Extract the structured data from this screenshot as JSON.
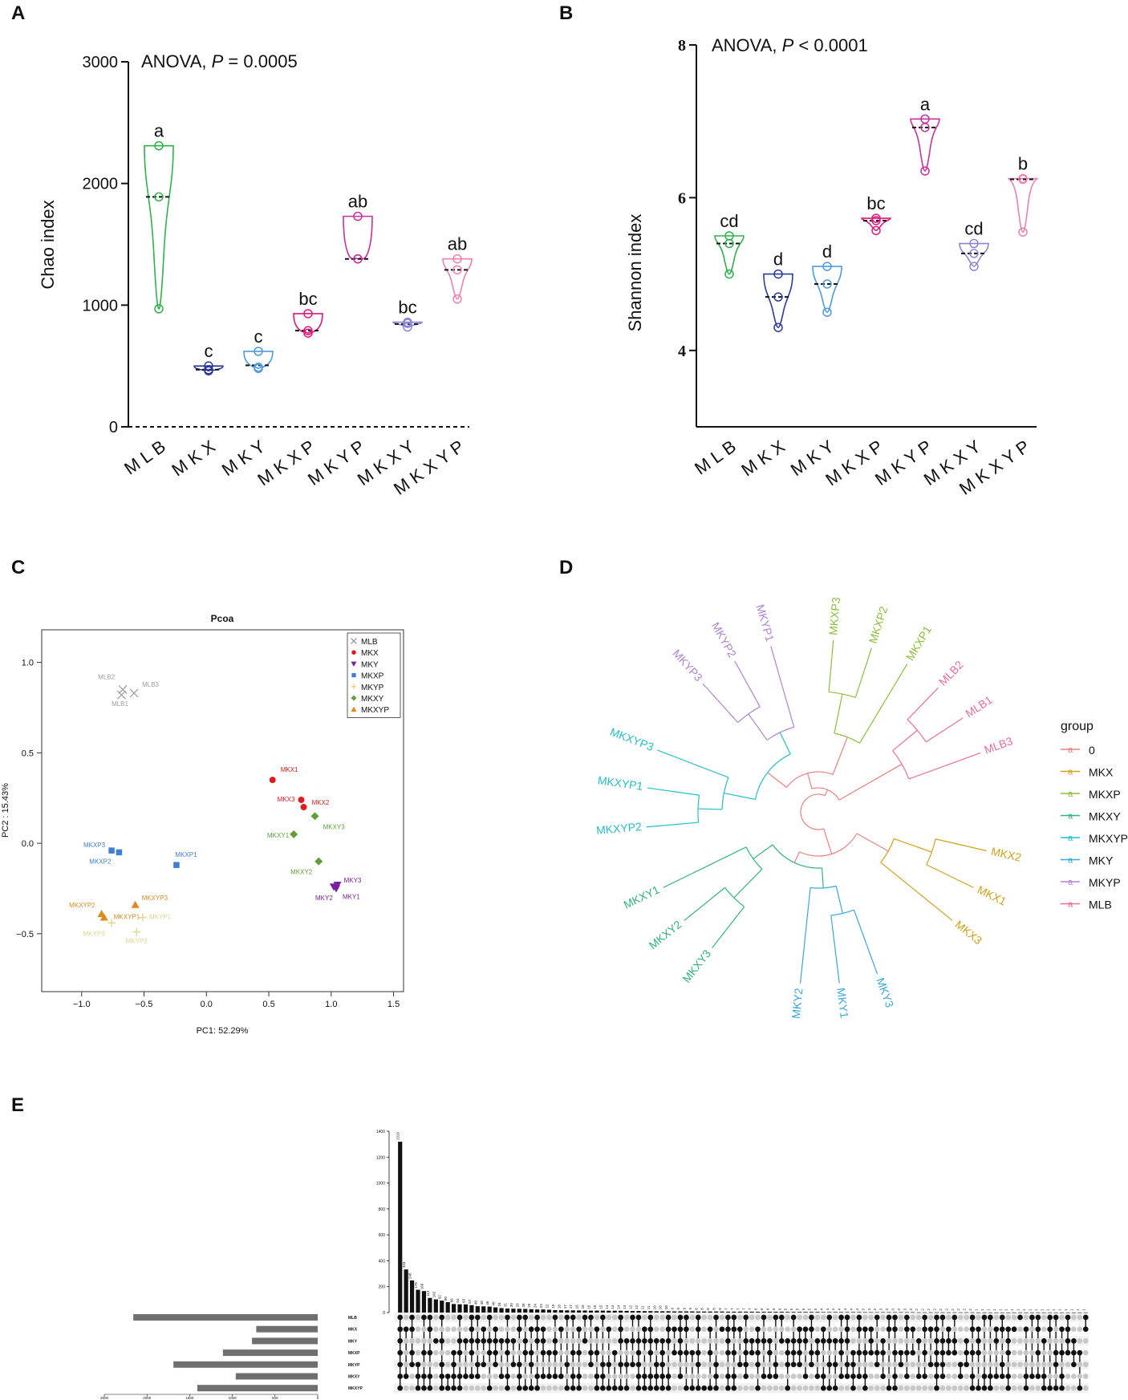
{
  "panel_labels": [
    "A",
    "B",
    "C",
    "D",
    "E"
  ],
  "chart_data": [
    {
      "id": "A",
      "type": "violin",
      "title": "ANOVA, P = 0.0005",
      "title_prefix": "ANOVA, ",
      "title_stat": "P",
      "title_suffix": " = 0.0005",
      "ylabel": "Chao index",
      "ylim": [
        0,
        3000
      ],
      "yticks": [
        0,
        1000,
        2000,
        3000
      ],
      "categories": [
        "MLB",
        "MKX",
        "MKY",
        "MKXP",
        "MKYP",
        "MKXY",
        "MKXYP"
      ],
      "colors": [
        "#2db34a",
        "#2b3a9b",
        "#4a9be0",
        "#e0197d",
        "#cc2f9b",
        "#8b85d6",
        "#f07fb0"
      ],
      "groups": [
        {
          "points": [
            2310,
            1890,
            970
          ],
          "median": 1890,
          "letter": "a"
        },
        {
          "points": [
            500,
            470,
            460
          ],
          "median": 470,
          "letter": "c"
        },
        {
          "points": [
            620,
            490,
            480
          ],
          "median": 505,
          "letter": "c"
        },
        {
          "points": [
            930,
            790,
            770
          ],
          "median": 790,
          "letter": "bc"
        },
        {
          "points": [
            1730,
            1380,
            1380
          ],
          "median": 1380,
          "letter": "ab"
        },
        {
          "points": [
            860,
            850,
            820
          ],
          "median": 845,
          "letter": "bc"
        },
        {
          "points": [
            1380,
            1290,
            1050
          ],
          "median": 1290,
          "letter": "ab"
        }
      ]
    },
    {
      "id": "B",
      "type": "violin",
      "title": "ANOVA, P < 0.0001",
      "title_prefix": "ANOVA, ",
      "title_stat": "P",
      "title_suffix": " < 0.0001",
      "ylabel": "Shannon index",
      "ylim": [
        3,
        8
      ],
      "yticks": [
        4,
        6,
        8
      ],
      "categories": [
        "MLB",
        "MKX",
        "MKY",
        "MKXP",
        "MKYP",
        "MKXY",
        "MKXYP"
      ],
      "colors": [
        "#2db34a",
        "#2b3a9b",
        "#4a9be0",
        "#e0197d",
        "#cc2f9b",
        "#8b85d6",
        "#f07fb0"
      ],
      "groups": [
        {
          "points": [
            5.5,
            5.4,
            5.0
          ],
          "median": 5.4,
          "letter": "cd"
        },
        {
          "points": [
            5.0,
            4.7,
            4.3
          ],
          "median": 4.7,
          "letter": "d"
        },
        {
          "points": [
            5.1,
            4.87,
            4.5
          ],
          "median": 4.87,
          "letter": "d"
        },
        {
          "points": [
            5.73,
            5.7,
            5.57
          ],
          "median": 5.7,
          "letter": "bc"
        },
        {
          "points": [
            7.03,
            6.92,
            6.35
          ],
          "median": 6.92,
          "letter": "a"
        },
        {
          "points": [
            5.4,
            5.27,
            5.1
          ],
          "median": 5.27,
          "letter": "cd"
        },
        {
          "points": [
            6.25,
            6.24,
            5.55
          ],
          "median": 6.24,
          "letter": "b"
        }
      ]
    },
    {
      "id": "C",
      "type": "scatter",
      "title": "Pcoa",
      "xlabel": "PC1: 52.29%",
      "ylabel": "PC2 : 15.43%",
      "xlim": [
        -1.32,
        1.58
      ],
      "ylim": [
        -0.82,
        1.18
      ],
      "xticks": [
        -1.0,
        -0.5,
        0.0,
        0.5,
        1.0,
        1.5
      ],
      "xtick_labels": [
        "−1.0",
        "−0.5",
        "0.0",
        "0.5",
        "1.0",
        "1.5"
      ],
      "yticks": [
        -0.5,
        0.0,
        0.5,
        1.0
      ],
      "ytick_labels": [
        "−0.5",
        "0.0",
        "0.5",
        "1.0"
      ],
      "legend_position": "top-right",
      "series": [
        {
          "name": "MLB",
          "color": "#9e9e9e",
          "marker": "x",
          "points": [
            {
              "label": "MLB2",
              "x": -0.67,
              "y": 0.85
            },
            {
              "label": "MLB3",
              "x": -0.58,
              "y": 0.83
            },
            {
              "label": "MLB1",
              "x": -0.68,
              "y": 0.82
            }
          ]
        },
        {
          "name": "MKX",
          "color": "#e41a1c",
          "marker": "circle",
          "points": [
            {
              "label": "MKX1",
              "x": 0.53,
              "y": 0.35
            },
            {
              "label": "MKX3",
              "x": 0.76,
              "y": 0.24
            },
            {
              "label": "MKX2",
              "x": 0.78,
              "y": 0.2
            }
          ]
        },
        {
          "name": "MKY",
          "color": "#7b1fa2",
          "marker": "triangle-down",
          "points": [
            {
              "label": "MKY3",
              "x": 1.05,
              "y": -0.23
            },
            {
              "label": "MKY2",
              "x": 1.02,
              "y": -0.24
            },
            {
              "label": "MKY1",
              "x": 1.04,
              "y": -0.25
            }
          ]
        },
        {
          "name": "MKXP",
          "color": "#3c7fd4",
          "marker": "square",
          "points": [
            {
              "label": "MKXP3",
              "x": -0.76,
              "y": -0.04
            },
            {
              "label": "MKXP2",
              "x": -0.7,
              "y": -0.05
            },
            {
              "label": "MKXP1",
              "x": -0.24,
              "y": -0.12
            }
          ]
        },
        {
          "name": "MKYP",
          "color": "#ddd58a",
          "marker": "plus",
          "points": [
            {
              "label": "MKYP1",
              "x": -0.51,
              "y": -0.41
            },
            {
              "label": "MKYP3",
              "x": -0.76,
              "y": -0.44
            },
            {
              "label": "MKYP2",
              "x": -0.56,
              "y": -0.49
            }
          ]
        },
        {
          "name": "MKXY",
          "color": "#5f9f35",
          "marker": "diamond",
          "points": [
            {
              "label": "MKXY3",
              "x": 0.87,
              "y": 0.15
            },
            {
              "label": "MKXY1",
              "x": 0.7,
              "y": 0.05
            },
            {
              "label": "MKXY2",
              "x": 0.9,
              "y": -0.1
            }
          ]
        },
        {
          "name": "MKXYP",
          "color": "#e08a1e",
          "marker": "triangle",
          "points": [
            {
              "label": "MKXYP3",
              "x": -0.57,
              "y": -0.34
            },
            {
              "label": "MKXYP2",
              "x": -0.84,
              "y": -0.39
            },
            {
              "label": "MKXYP1",
              "x": -0.82,
              "y": -0.41
            }
          ]
        }
      ]
    },
    {
      "id": "D",
      "type": "dendrogram",
      "legend_title": "group",
      "legend": [
        {
          "name": "0",
          "color": "#f08080"
        },
        {
          "name": "MKX",
          "color": "#d4a017"
        },
        {
          "name": "MKXP",
          "color": "#8bbf3a"
        },
        {
          "name": "MKXY",
          "color": "#2fb57a"
        },
        {
          "name": "MKXYP",
          "color": "#22c0c8"
        },
        {
          "name": "MKY",
          "color": "#38a8dd"
        },
        {
          "name": "MKYP",
          "color": "#b083d6"
        },
        {
          "name": "MLB",
          "color": "#ee6ba0"
        }
      ],
      "legend_key_glyph": "a",
      "leaves": [
        {
          "label": "MKXP3",
          "group": "MKXP"
        },
        {
          "label": "MKXP2",
          "group": "MKXP"
        },
        {
          "label": "MKXP1",
          "group": "MKXP"
        },
        {
          "label": "MLB2",
          "group": "MLB"
        },
        {
          "label": "MLB1",
          "group": "MLB"
        },
        {
          "label": "MLB3",
          "group": "MLB"
        },
        {
          "label": "MKX2",
          "group": "MKX"
        },
        {
          "label": "MKX1",
          "group": "MKX"
        },
        {
          "label": "MKX3",
          "group": "MKX"
        },
        {
          "label": "MKY3",
          "group": "MKY"
        },
        {
          "label": "MKY1",
          "group": "MKY"
        },
        {
          "label": "MKY2",
          "group": "MKY"
        },
        {
          "label": "MKXY3",
          "group": "MKXY"
        },
        {
          "label": "MKXY2",
          "group": "MKXY"
        },
        {
          "label": "MKXY1",
          "group": "MKXY"
        },
        {
          "label": "MKXYP2",
          "group": "MKXYP"
        },
        {
          "label": "MKXYP1",
          "group": "MKXYP"
        },
        {
          "label": "MKXYP3",
          "group": "MKXYP"
        },
        {
          "label": "MKYP3",
          "group": "MKYP"
        },
        {
          "label": "MKYP2",
          "group": "MKYP"
        },
        {
          "label": "MKYP1",
          "group": "MKYP"
        }
      ]
    },
    {
      "id": "E",
      "type": "upset",
      "sets": [
        "MLB",
        "MKX",
        "MKY",
        "MKXP",
        "MKYP",
        "MKXY",
        "MKXYP"
      ],
      "set_sizes": [
        2160,
        720,
        770,
        1110,
        1690,
        960,
        1410
      ],
      "set_size_axis": [
        2500,
        2000,
        1500,
        1000,
        500,
        0
      ],
      "intersection_axis": [
        0,
        200,
        400,
        600,
        800,
        1000,
        1200,
        1400
      ],
      "intersection_sizes": [
        1319,
        333,
        248,
        176,
        166,
        113,
        102,
        92,
        80,
        66,
        64,
        63,
        57,
        49,
        48,
        46,
        40,
        34,
        31,
        30,
        29,
        28,
        26,
        24,
        24,
        22,
        19,
        18,
        17,
        17,
        16,
        16,
        15,
        15,
        15,
        14,
        14,
        14,
        13,
        12,
        12,
        11,
        11,
        10,
        10,
        10,
        9,
        9,
        9,
        9,
        8,
        8,
        8,
        8,
        8,
        7,
        7,
        7,
        7,
        7,
        6,
        6,
        6,
        6,
        6,
        5,
        5,
        5,
        5,
        5,
        5,
        4,
        4,
        4,
        4,
        4,
        4,
        4,
        3,
        3,
        3,
        3,
        3,
        3,
        3,
        3,
        3,
        2,
        2,
        2,
        2,
        2,
        2,
        2,
        2,
        2,
        2,
        1,
        1,
        1,
        1,
        1,
        1,
        1,
        1,
        1,
        1,
        1,
        1,
        1,
        1,
        1,
        1,
        1,
        1,
        1
      ]
    }
  ]
}
